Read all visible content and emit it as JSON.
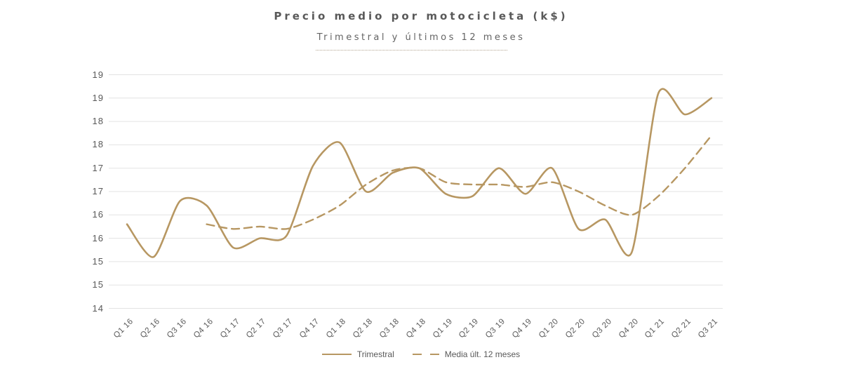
{
  "header": {
    "title": "Precio medio por motocicleta (k$)",
    "subtitle": "Trimestral y últimos 12 meses"
  },
  "colors": {
    "accent_line": "#b79762",
    "grid": "#e3e3e3",
    "text": "#595959",
    "subtitle_rule": "#b3a490",
    "background": "#ffffff"
  },
  "legend": {
    "position": "bottom",
    "items": [
      {
        "label": "Trimestral",
        "style": "solid"
      },
      {
        "label": "Media últ. 12 meses",
        "style": "dashed"
      }
    ]
  },
  "chart_data": {
    "type": "line",
    "smoothed": true,
    "title": "Precio medio por motocicleta (k$)",
    "subtitle": "Trimestral y últimos 12 meses",
    "xlabel": "",
    "ylabel": "",
    "grid": true,
    "legend_position": "bottom",
    "ylim": [
      14,
      19
    ],
    "y_tick_step": 0.5,
    "y_tick_labels_top_to_bottom": [
      "19",
      "19",
      "18",
      "18",
      "17",
      "17",
      "16",
      "16",
      "15",
      "15",
      "14"
    ],
    "categories": [
      "Q1 16",
      "Q2 16",
      "Q3 16",
      "Q4 16",
      "Q1 17",
      "Q2 17",
      "Q3 17",
      "Q4 17",
      "Q1 18",
      "Q2 18",
      "Q3 18",
      "Q4 18",
      "Q1 19",
      "Q2 19",
      "Q3 19",
      "Q4 19",
      "Q1 20",
      "Q2 20",
      "Q3 20",
      "Q4 20",
      "Q1 21",
      "Q2 21",
      "Q3 21"
    ],
    "series": [
      {
        "name": "Trimestral",
        "style": "solid",
        "color": "#b79762",
        "values": [
          15.8,
          15.1,
          16.3,
          16.2,
          15.3,
          15.5,
          15.55,
          17.05,
          17.55,
          16.5,
          16.9,
          17.0,
          16.45,
          16.4,
          17.0,
          16.45,
          17.0,
          15.7,
          15.9,
          15.2,
          18.6,
          18.15,
          18.5
        ]
      },
      {
        "name": "Media últ. 12 meses",
        "style": "dashed",
        "color": "#b79762",
        "values": [
          null,
          null,
          null,
          15.8,
          15.7,
          15.75,
          15.7,
          15.9,
          16.2,
          16.65,
          16.95,
          17.0,
          16.7,
          16.65,
          16.65,
          16.6,
          16.7,
          16.5,
          16.2,
          16.0,
          16.4,
          17.0,
          17.7
        ]
      }
    ]
  }
}
